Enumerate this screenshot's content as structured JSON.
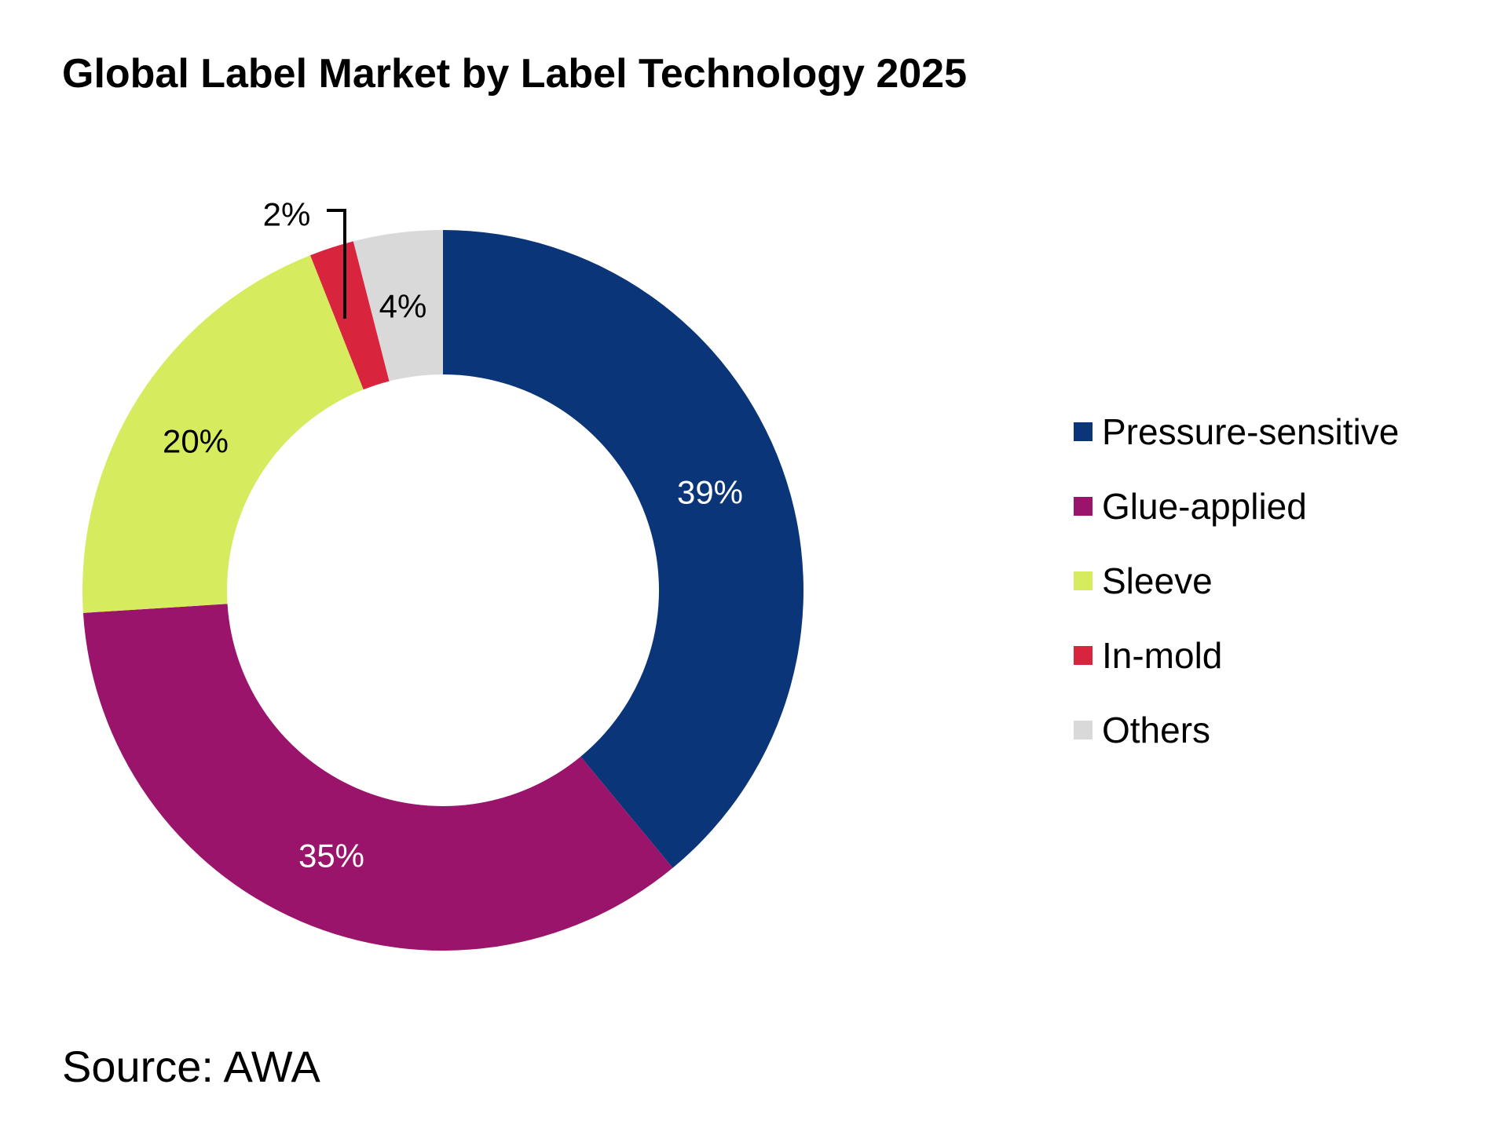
{
  "chart_data": {
    "type": "pie",
    "variant": "donut",
    "title": "Global Label Market by Label Technology 2025",
    "categories": [
      "Pressure-sensitive",
      "Glue-applied",
      "Sleeve",
      "In-mold",
      "Others"
    ],
    "values": [
      39,
      35,
      20,
      2,
      4
    ],
    "data_labels": [
      "39%",
      "35%",
      "20%",
      "2%",
      "4%"
    ],
    "colors": [
      "#0A3578",
      "#9B146B",
      "#D6EC5E",
      "#D8253D",
      "#D9D9D9"
    ],
    "label_colors": [
      "#FFFFFF",
      "#FFFFFF",
      "#000000",
      "#000000",
      "#000000"
    ],
    "legend_placement": "right",
    "start": "top, clockwise"
  },
  "source": "Source: AWA"
}
